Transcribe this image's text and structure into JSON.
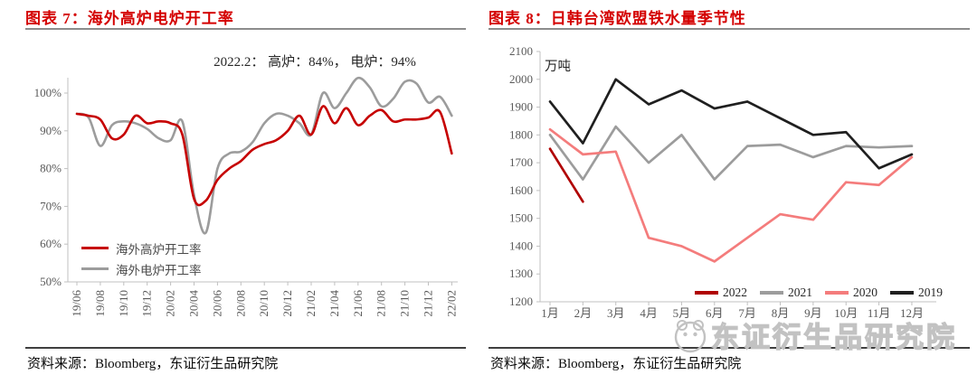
{
  "page": {
    "background": "#ffffff",
    "accent_red": "#d40000"
  },
  "chart_data": [
    {
      "type": "line",
      "title": "图表 7：海外高炉电炉开工率",
      "annotation": "2022.2： 高炉：84%， 电炉：94%",
      "source": "资料来源：Bloomberg，东证衍生品研究院",
      "x": [
        "19/06",
        "19/07",
        "19/08",
        "19/09",
        "19/10",
        "19/11",
        "19/12",
        "20/01",
        "20/02",
        "20/03",
        "20/04",
        "20/05",
        "20/06",
        "20/07",
        "20/08",
        "20/09",
        "20/10",
        "20/11",
        "20/12",
        "21/01",
        "21/02",
        "21/03",
        "21/04",
        "21/05",
        "21/06",
        "21/07",
        "21/08",
        "21/09",
        "21/10",
        "21/11",
        "21/12",
        "22/01",
        "22/02"
      ],
      "x_label_every": 2,
      "ylim": [
        50,
        100
      ],
      "ytick_step": 10,
      "y_suffix": "%",
      "grid": false,
      "smooth": true,
      "legend_position": "inside-bottom-left",
      "axis_color": "#c0c0c0",
      "tick_label_color": "#595959",
      "series": [
        {
          "name": "海外高炉开工率",
          "color": "#c60000",
          "values": [
            94.5,
            94,
            93,
            88,
            89,
            94,
            92,
            92.5,
            92,
            89,
            72,
            71.5,
            77,
            80,
            82,
            85,
            86.5,
            87.5,
            90,
            94,
            89,
            96.5,
            92,
            96,
            91.5,
            94,
            95.5,
            92.5,
            93,
            93,
            93.5,
            95,
            84
          ]
        },
        {
          "name": "海外电炉开工率",
          "color": "#9c9c9c",
          "values": [
            94.5,
            93.5,
            86,
            91.5,
            92.5,
            92,
            90.5,
            88,
            87.5,
            92.5,
            73,
            63,
            80,
            84,
            84.5,
            87,
            92,
            94.5,
            94,
            92,
            89,
            100,
            96,
            100,
            104,
            101.5,
            96.5,
            98.5,
            103,
            102.5,
            97.5,
            99,
            94
          ]
        }
      ]
    },
    {
      "type": "line",
      "title": "图表 8：日韩台湾欧盟铁水量季节性",
      "unit": "万吨",
      "source": "资料来源：Bloomberg，东证衍生品研究院",
      "watermark": "东证衍生品研究院",
      "categories": [
        "1月",
        "2月",
        "3月",
        "4月",
        "5月",
        "6月",
        "7月",
        "8月",
        "9月",
        "10月",
        "11月",
        "12月"
      ],
      "ylim": [
        1200,
        2100
      ],
      "ytick_step": 100,
      "y_suffix": "",
      "grid": false,
      "smooth": false,
      "legend_position": "inside-bottom-right",
      "axis_color": "#c0c0c0",
      "tick_label_color": "#595959",
      "series": [
        {
          "name": "2022",
          "color": "#b00000",
          "values": [
            1750,
            1560
          ]
        },
        {
          "name": "2021",
          "color": "#9c9c9c",
          "values": [
            1800,
            1640,
            1830,
            1700,
            1800,
            1640,
            1760,
            1765,
            1720,
            1760,
            1755,
            1760
          ]
        },
        {
          "name": "2020",
          "color": "#f47c7c",
          "values": [
            1820,
            1730,
            1740,
            1430,
            1400,
            1345,
            1430,
            1515,
            1495,
            1630,
            1620,
            1720
          ]
        },
        {
          "name": "2019",
          "color": "#1f1f1f",
          "values": [
            1920,
            1770,
            2000,
            1910,
            1960,
            1895,
            1920,
            1860,
            1800,
            1810,
            1680,
            1730
          ]
        }
      ]
    }
  ]
}
